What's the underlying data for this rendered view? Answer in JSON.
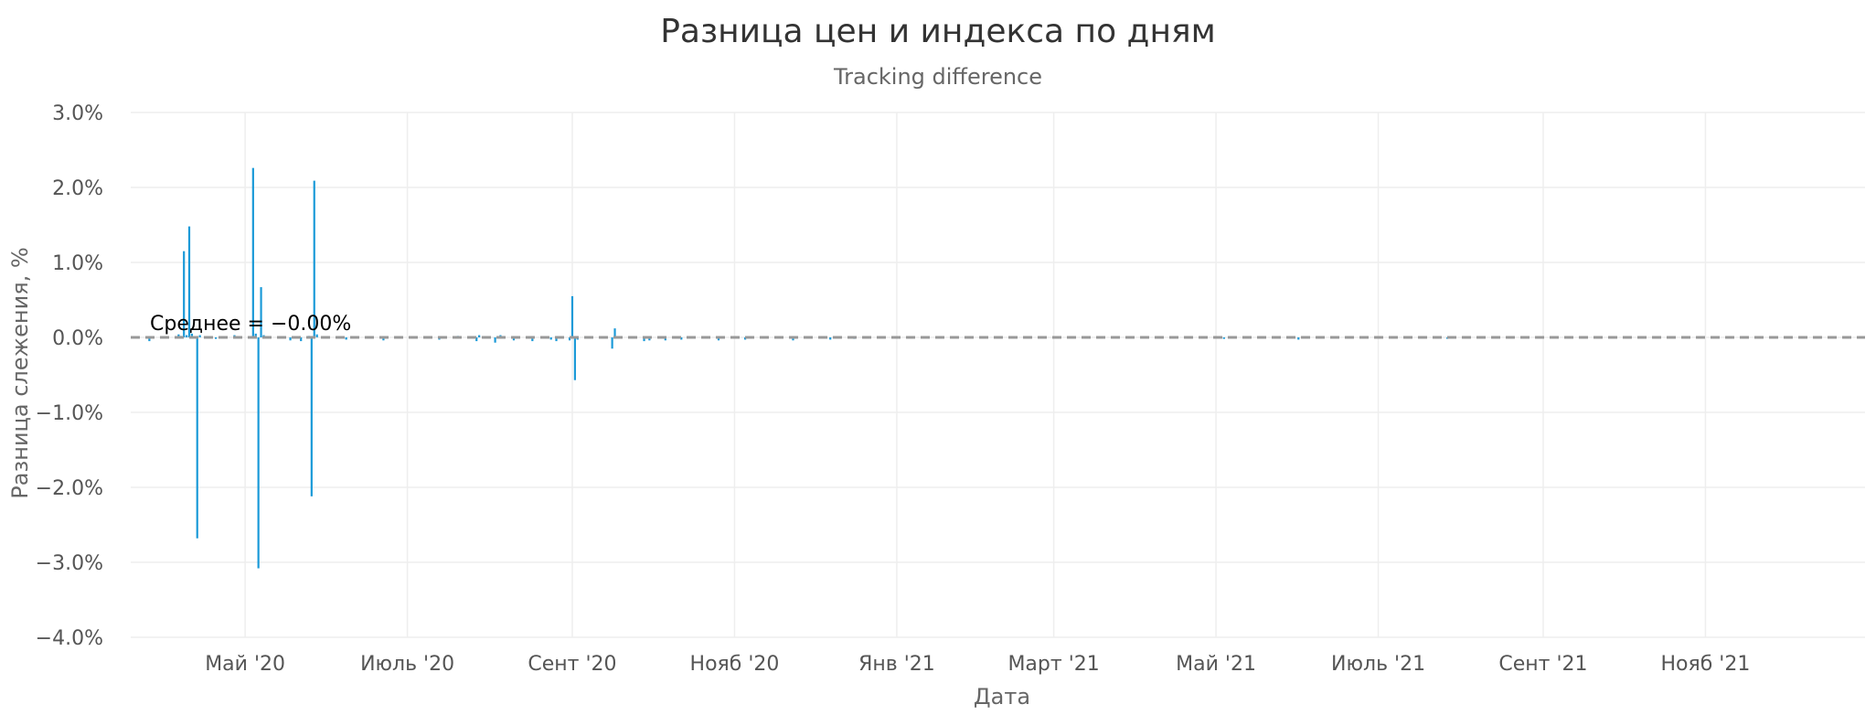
{
  "chart_data": {
    "type": "bar",
    "title": "Разница цен и индекса по дням",
    "subtitle": "Tracking difference",
    "xlabel": "Дата",
    "ylabel": "Разница слежения, %",
    "ylim": [
      -4.0,
      3.0
    ],
    "y_ticks": [
      "3.0%",
      "2.0%",
      "1.0%",
      "0.0%",
      "−1.0%",
      "−2.0%",
      "−3.0%",
      "−4.0%"
    ],
    "y_tick_values": [
      3.0,
      2.0,
      1.0,
      0.0,
      -1.0,
      -2.0,
      -3.0,
      -4.0
    ],
    "xlim": [
      "2020-03-19",
      "2021-12-31"
    ],
    "x_ticks": [
      "Май '20",
      "Июль '20",
      "Сент '20",
      "Нояб '20",
      "Янв '21",
      "Март '21",
      "Май '21",
      "Июль '21",
      "Сент '21",
      "Нояб '21"
    ],
    "x_tick_dates": [
      "2020-05-01",
      "2020-07-01",
      "2020-09-01",
      "2020-11-01",
      "2021-01-01",
      "2021-03-01",
      "2021-05-01",
      "2021-07-01",
      "2021-09-01",
      "2021-11-01"
    ],
    "grid": true,
    "mean": {
      "label": "Среднее = −0.00%",
      "value": 0.0
    },
    "colors": {
      "bar": "#1b9ad8",
      "mean_line": "#999999",
      "grid": "#eeeeee"
    },
    "series": [
      {
        "points": [
          {
            "x": "2020-03-26",
            "y": -0.05
          },
          {
            "x": "2020-04-06",
            "y": 0.04
          },
          {
            "x": "2020-04-07",
            "y": 0.02
          },
          {
            "x": "2020-04-08",
            "y": 1.15
          },
          {
            "x": "2020-04-09",
            "y": 0.03
          },
          {
            "x": "2020-04-10",
            "y": 1.48
          },
          {
            "x": "2020-04-11",
            "y": 0.05
          },
          {
            "x": "2020-04-13",
            "y": -2.68
          },
          {
            "x": "2020-04-14",
            "y": 0.03
          },
          {
            "x": "2020-04-20",
            "y": -0.02
          },
          {
            "x": "2020-04-27",
            "y": 0.03
          },
          {
            "x": "2020-05-04",
            "y": 2.26
          },
          {
            "x": "2020-05-05",
            "y": 0.05
          },
          {
            "x": "2020-05-06",
            "y": -3.08
          },
          {
            "x": "2020-05-07",
            "y": 0.67
          },
          {
            "x": "2020-05-08",
            "y": 0.03
          },
          {
            "x": "2020-05-18",
            "y": -0.04
          },
          {
            "x": "2020-05-22",
            "y": -0.05
          },
          {
            "x": "2020-05-25",
            "y": 0.02
          },
          {
            "x": "2020-05-26",
            "y": -2.12
          },
          {
            "x": "2020-05-27",
            "y": 2.09
          },
          {
            "x": "2020-05-28",
            "y": 0.04
          },
          {
            "x": "2020-06-08",
            "y": -0.03
          },
          {
            "x": "2020-06-22",
            "y": -0.04
          },
          {
            "x": "2020-07-13",
            "y": -0.03
          },
          {
            "x": "2020-07-20",
            "y": 0.02
          },
          {
            "x": "2020-07-27",
            "y": -0.05
          },
          {
            "x": "2020-07-28",
            "y": 0.03
          },
          {
            "x": "2020-08-03",
            "y": -0.07
          },
          {
            "x": "2020-08-05",
            "y": 0.03
          },
          {
            "x": "2020-08-10",
            "y": -0.04
          },
          {
            "x": "2020-08-17",
            "y": -0.05
          },
          {
            "x": "2020-08-24",
            "y": -0.03
          },
          {
            "x": "2020-08-26",
            "y": -0.05
          },
          {
            "x": "2020-08-31",
            "y": -0.04
          },
          {
            "x": "2020-09-01",
            "y": 0.55
          },
          {
            "x": "2020-09-02",
            "y": -0.57
          },
          {
            "x": "2020-09-03",
            "y": -0.03
          },
          {
            "x": "2020-09-16",
            "y": -0.15
          },
          {
            "x": "2020-09-17",
            "y": 0.12
          },
          {
            "x": "2020-09-28",
            "y": -0.05
          },
          {
            "x": "2020-09-30",
            "y": -0.04
          },
          {
            "x": "2020-10-06",
            "y": -0.04
          },
          {
            "x": "2020-10-12",
            "y": -0.03
          },
          {
            "x": "2020-10-26",
            "y": -0.04
          },
          {
            "x": "2020-11-05",
            "y": -0.03
          },
          {
            "x": "2020-11-23",
            "y": -0.04
          },
          {
            "x": "2020-12-07",
            "y": -0.03
          },
          {
            "x": "2020-12-16",
            "y": -0.02
          },
          {
            "x": "2021-05-04",
            "y": -0.02
          },
          {
            "x": "2021-06-01",
            "y": -0.03
          },
          {
            "x": "2021-07-27",
            "y": -0.02
          }
        ]
      }
    ]
  }
}
